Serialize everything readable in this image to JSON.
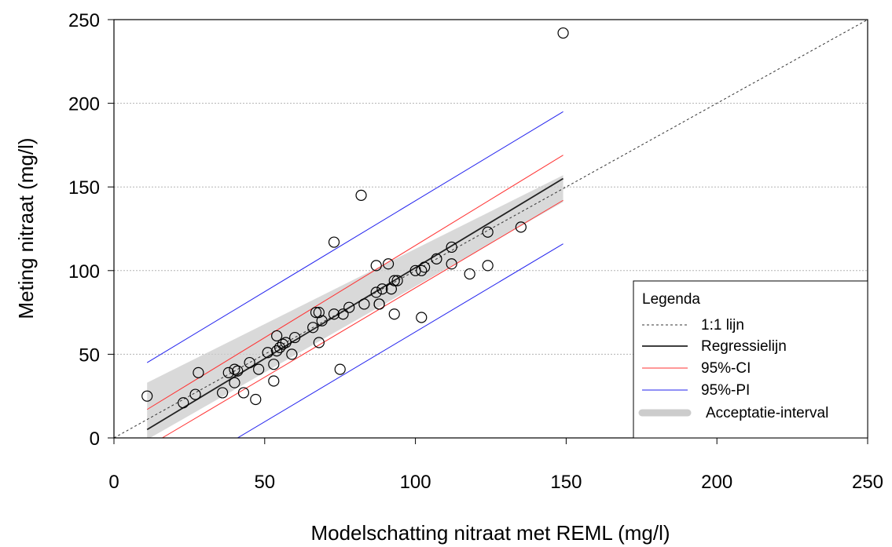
{
  "chart_data": {
    "type": "scatter",
    "title": "",
    "xlabel": "Modelschatting nitraat met REML (mg/l)",
    "ylabel": "Meting nitraat (mg/l)",
    "xlim": [
      0,
      250
    ],
    "ylim": [
      0,
      250
    ],
    "xticks": [
      "0",
      "50",
      "100",
      "150",
      "200",
      "250"
    ],
    "yticks": [
      "0",
      "50",
      "100",
      "150",
      "200",
      "250"
    ],
    "grid": "horizontal dotted",
    "legend_position": "bottom-right",
    "legend": {
      "title": "Legenda",
      "entries": [
        {
          "key": "identity",
          "label": "1:1 lijn"
        },
        {
          "key": "regression",
          "label": "Regressielijn"
        },
        {
          "key": "ci",
          "label": "95%-CI"
        },
        {
          "key": "pi",
          "label": "95%-PI"
        },
        {
          "key": "acceptance",
          "label": "Acceptatie-interval"
        }
      ]
    },
    "colors": {
      "points": "#000000",
      "identity": "#333333",
      "regression": "#222222",
      "ci": "#ff3333",
      "pi": "#2222ee",
      "acceptance": "#cccccc"
    },
    "points": [
      [
        11,
        25
      ],
      [
        23,
        21
      ],
      [
        27,
        26
      ],
      [
        28,
        39
      ],
      [
        36,
        27
      ],
      [
        38,
        39
      ],
      [
        40,
        41
      ],
      [
        40,
        33
      ],
      [
        41,
        40
      ],
      [
        43,
        27
      ],
      [
        45,
        45
      ],
      [
        47,
        23
      ],
      [
        48,
        41
      ],
      [
        51,
        51
      ],
      [
        53,
        34
      ],
      [
        53,
        44
      ],
      [
        54,
        52
      ],
      [
        54,
        61
      ],
      [
        55,
        54
      ],
      [
        56,
        56
      ],
      [
        57,
        57
      ],
      [
        59,
        50
      ],
      [
        60,
        60
      ],
      [
        66,
        66
      ],
      [
        67,
        75
      ],
      [
        68,
        57
      ],
      [
        68,
        75
      ],
      [
        69,
        70
      ],
      [
        73,
        117
      ],
      [
        73,
        74
      ],
      [
        75,
        41
      ],
      [
        76,
        74
      ],
      [
        78,
        78
      ],
      [
        82,
        145
      ],
      [
        83,
        80
      ],
      [
        87,
        87
      ],
      [
        87,
        103
      ],
      [
        88,
        80
      ],
      [
        88,
        80
      ],
      [
        89,
        89
      ],
      [
        91,
        104
      ],
      [
        92,
        89
      ],
      [
        93,
        74
      ],
      [
        93,
        94
      ],
      [
        94,
        94
      ],
      [
        100,
        100
      ],
      [
        102,
        72
      ],
      [
        102,
        100
      ],
      [
        103,
        102
      ],
      [
        107,
        107
      ],
      [
        112,
        104
      ],
      [
        112,
        114
      ],
      [
        118,
        98
      ],
      [
        124,
        103
      ],
      [
        124,
        123
      ],
      [
        135,
        126
      ],
      [
        149,
        242
      ]
    ],
    "identity_line": [
      [
        0,
        0
      ],
      [
        250,
        250
      ]
    ],
    "regression_line": [
      [
        11,
        5
      ],
      [
        149,
        155
      ]
    ],
    "ci_upper": [
      [
        11,
        17
      ],
      [
        149,
        169
      ]
    ],
    "ci_lower": [
      [
        16,
        0
      ],
      [
        149,
        142
      ]
    ],
    "pi_upper": [
      [
        11,
        45
      ],
      [
        149,
        195
      ]
    ],
    "pi_lower": [
      [
        41,
        0
      ],
      [
        149,
        116
      ]
    ],
    "acceptance_band": {
      "upper": [
        [
          11,
          33
        ],
        [
          149,
          157
        ]
      ],
      "lower": [
        [
          11,
          -1
        ],
        [
          149,
          141
        ]
      ]
    }
  }
}
